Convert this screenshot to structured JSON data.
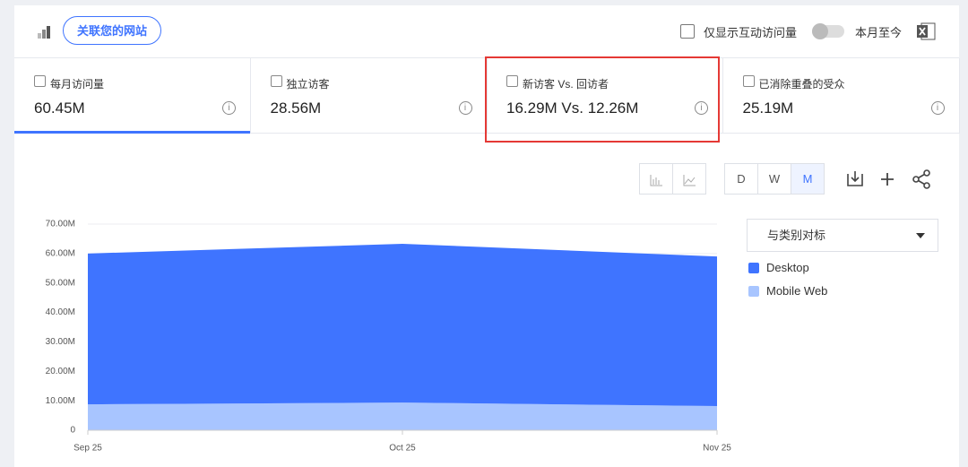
{
  "toolbar": {
    "connect_button": "关联您的网站",
    "checkbox_label": "仅显示互动访问量",
    "toggle_label": "本月至今"
  },
  "metrics": [
    {
      "label": "每月访问量",
      "value": "60.45M"
    },
    {
      "label": "独立访客",
      "value": "28.56M"
    },
    {
      "label": "新访客 Vs. 回访者",
      "value": "16.29M Vs. 12.26M"
    },
    {
      "label": "已消除重叠的受众",
      "value": "25.19M"
    }
  ],
  "controls": {
    "granularity": [
      "D",
      "W",
      "M"
    ],
    "compare_dropdown": "与类别对标"
  },
  "chart_data": {
    "type": "stacked-area",
    "x": [
      "Sep 25",
      "Oct 25",
      "Nov 25"
    ],
    "series": [
      {
        "name": "Mobile Web",
        "color": "#a8c5ff",
        "values": [
          8800000,
          9400000,
          8200000
        ]
      },
      {
        "name": "Desktop",
        "color": "#3f74ff",
        "values": [
          51200000,
          53900000,
          50800000
        ]
      }
    ],
    "ylim": [
      0,
      70000000
    ],
    "yticks": [
      0,
      {
        "value": 10000000,
        "label": "10.00M"
      },
      {
        "value": 20000000,
        "label": "20.00M"
      },
      {
        "value": 30000000,
        "label": "30.00M"
      },
      {
        "value": 40000000,
        "label": "40.00M"
      },
      {
        "value": 50000000,
        "label": "50.00M"
      },
      {
        "value": 60000000,
        "label": "60.00M"
      },
      {
        "value": 70000000,
        "label": "70.00M"
      }
    ],
    "grid": true
  }
}
